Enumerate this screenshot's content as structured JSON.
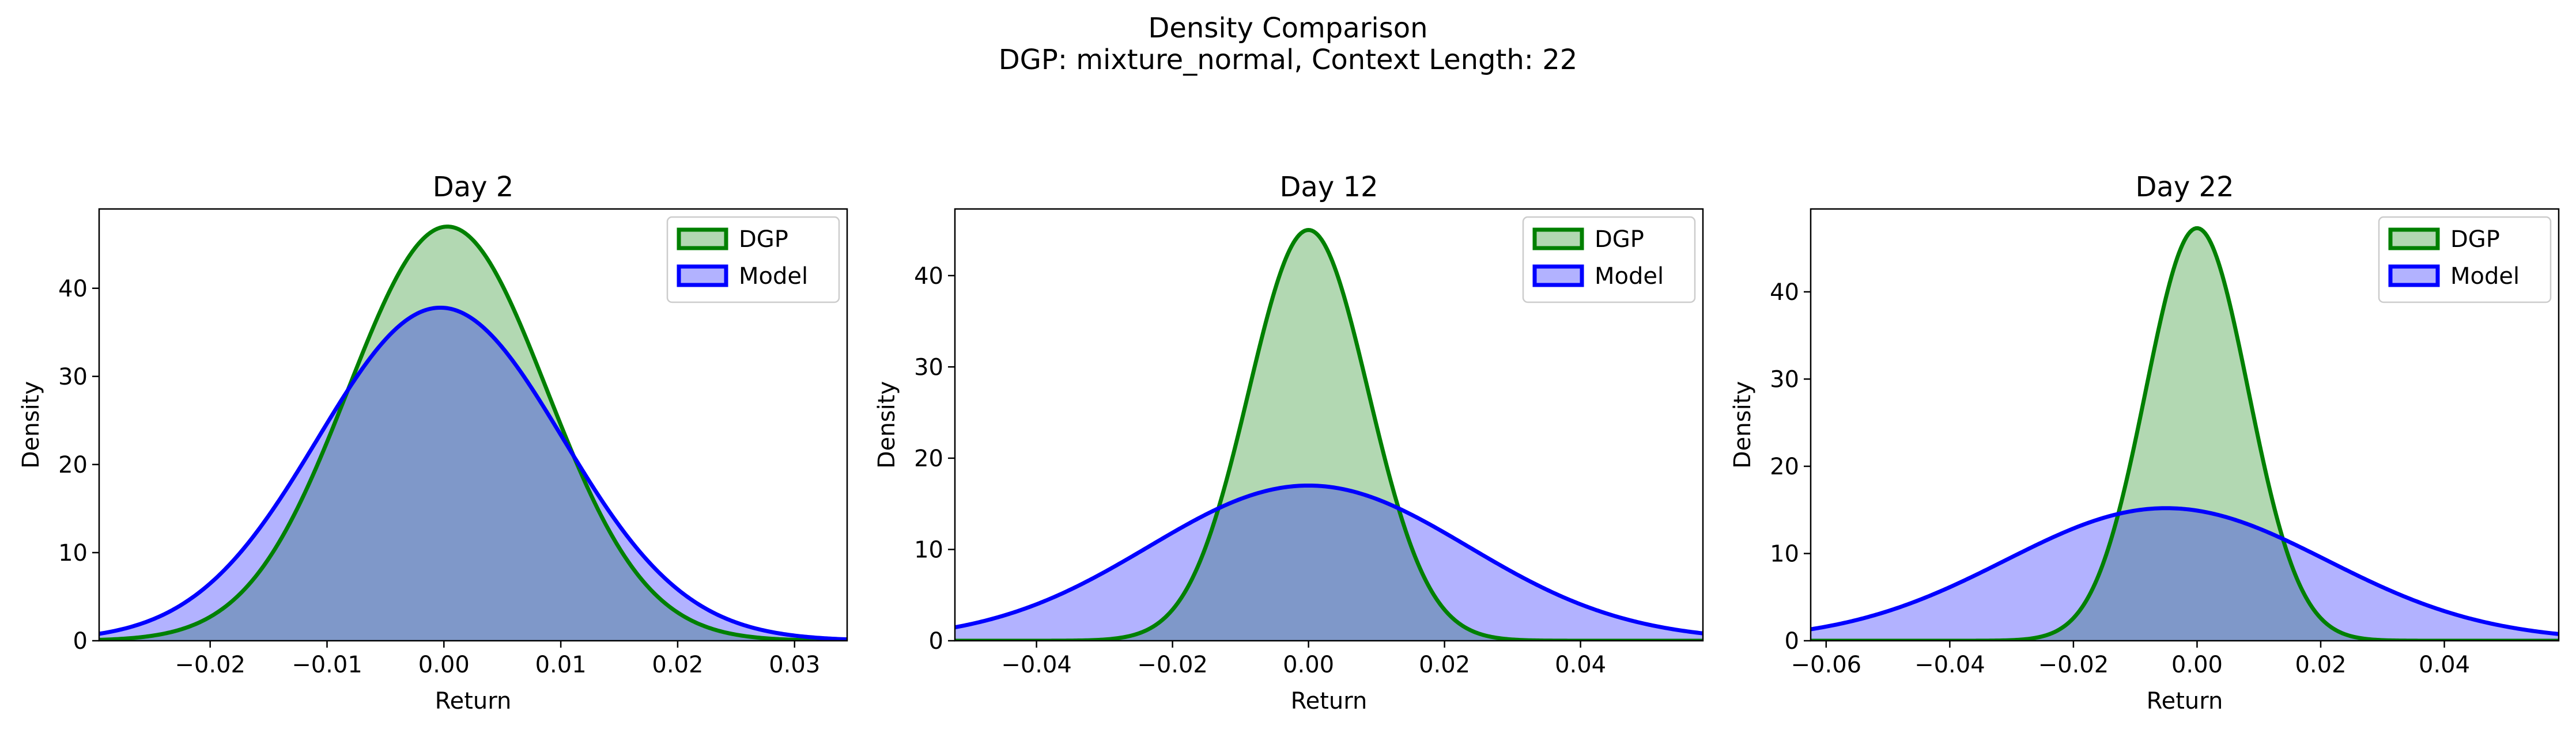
{
  "figure": {
    "title_line1": "Density Comparison",
    "title_line2": "DGP: mixture_normal, Context Length: 22"
  },
  "colors": {
    "dgp_line": "#008000",
    "dgp_fill": "#b2d8b2",
    "model_line": "#0000ff",
    "model_fill": "#b2b2ff",
    "overlap_fill": "#7f98c9"
  },
  "chart_data": [
    {
      "type": "area",
      "title": "Day 2",
      "xlabel": "Return",
      "ylabel": "Density",
      "xlim": [
        -0.0295,
        0.0345
      ],
      "ylim": [
        0,
        49
      ],
      "xticks": [
        -0.02,
        -0.01,
        0.0,
        0.01,
        0.02,
        0.03
      ],
      "xtick_labels": [
        "−0.02",
        "−0.01",
        "0.00",
        "0.01",
        "0.02",
        "0.03"
      ],
      "yticks": [
        0,
        10,
        20,
        30,
        40
      ],
      "ytick_labels": [
        "0",
        "10",
        "20",
        "30",
        "40"
      ],
      "legend": "top-right",
      "series": [
        {
          "name": "DGP",
          "distribution": "normal",
          "mean": 0.0003,
          "std": 0.0085,
          "peak": 47.0
        },
        {
          "name": "Model",
          "distribution": "normal",
          "mean": -0.0003,
          "std": 0.0105,
          "peak": 37.8
        }
      ]
    },
    {
      "type": "area",
      "title": "Day 12",
      "xlabel": "Return",
      "ylabel": "Density",
      "xlim": [
        -0.052,
        0.058
      ],
      "ylim": [
        0,
        47.3
      ],
      "xticks": [
        -0.04,
        -0.02,
        0.0,
        0.02,
        0.04
      ],
      "xtick_labels": [
        "−0.04",
        "−0.02",
        "0.00",
        "0.02",
        "0.04"
      ],
      "yticks": [
        0,
        10,
        20,
        30,
        40
      ],
      "ytick_labels": [
        "0",
        "10",
        "20",
        "30",
        "40"
      ],
      "legend": "top-right",
      "series": [
        {
          "name": "DGP",
          "distribution": "normal",
          "mean": 0.0,
          "std": 0.0088,
          "peak": 45.0
        },
        {
          "name": "Model",
          "distribution": "normal",
          "mean": 0.0,
          "std": 0.0235,
          "peak": 17.0
        }
      ]
    },
    {
      "type": "area",
      "title": "Day 22",
      "xlabel": "Return",
      "ylabel": "Density",
      "xlim": [
        -0.0625,
        0.0585
      ],
      "ylim": [
        0,
        49.5
      ],
      "xticks": [
        -0.06,
        -0.04,
        -0.02,
        0.0,
        0.02,
        0.04
      ],
      "xtick_labels": [
        "−0.06",
        "−0.04",
        "−0.02",
        "0.00",
        "0.02",
        "0.04"
      ],
      "yticks": [
        0,
        10,
        20,
        30,
        40
      ],
      "ytick_labels": [
        "0",
        "10",
        "20",
        "30",
        "40"
      ],
      "legend": "top-right",
      "series": [
        {
          "name": "DGP",
          "distribution": "normal",
          "mean": 0.0,
          "std": 0.0083,
          "peak": 47.3
        },
        {
          "name": "Model",
          "distribution": "normal",
          "mean": -0.005,
          "std": 0.026,
          "peak": 15.2
        }
      ]
    }
  ]
}
